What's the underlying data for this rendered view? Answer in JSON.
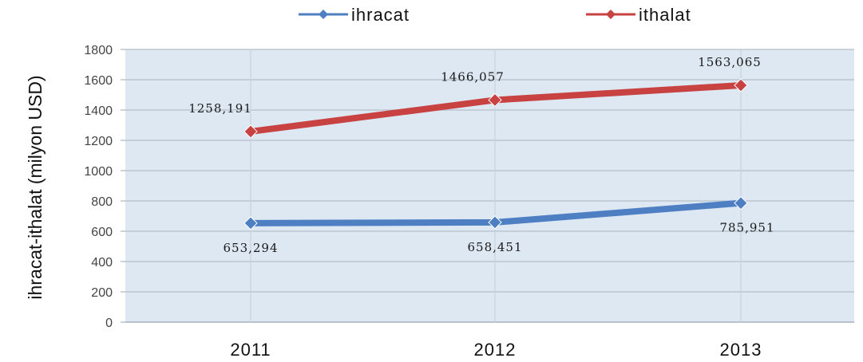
{
  "chart_data": {
    "type": "line",
    "categories": [
      "2011",
      "2012",
      "2013"
    ],
    "ylabel": "ihracat-ithalat (milyon USD)",
    "xlabel": "",
    "ylim": [
      0,
      1800
    ],
    "yticks": [
      0,
      200,
      400,
      600,
      800,
      1000,
      1200,
      1400,
      1600,
      1800
    ],
    "grid": true,
    "legend_position": "top",
    "series": [
      {
        "name": "ihracat",
        "color": "#4f7fc3",
        "values": [
          653.294,
          658.451,
          785.951
        ],
        "labels": [
          "653,294",
          "658,451",
          "785,951"
        ]
      },
      {
        "name": "ithalat",
        "color": "#c94242",
        "values": [
          1258.191,
          1466.057,
          1563.065
        ],
        "labels": [
          "1258,191",
          "1466,057",
          "1563,065"
        ]
      }
    ]
  }
}
